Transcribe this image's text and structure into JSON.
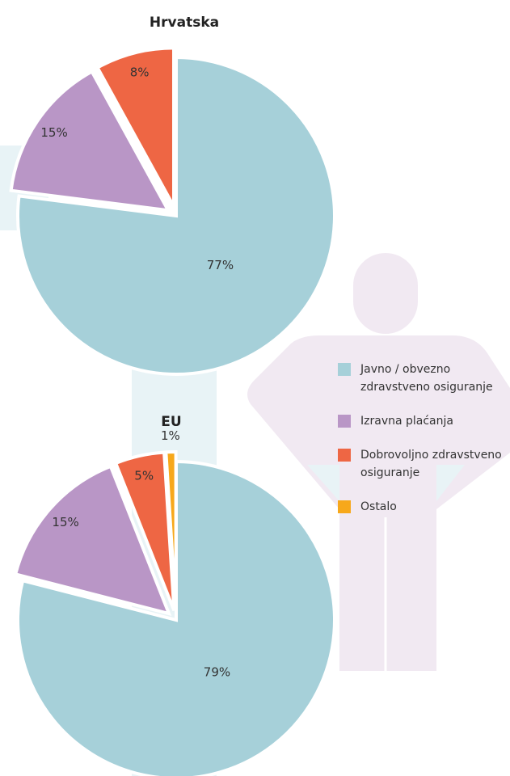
{
  "legend": {
    "items": [
      {
        "name": "Javno / obvezno zdravstveno osiguranje",
        "color": "#a6d0d9"
      },
      {
        "name": "Izravna plaćanja",
        "color": "#b996c6"
      },
      {
        "name": "Dobrovoljno zdravstveno osiguranje",
        "color": "#ee6644"
      },
      {
        "name": "Ostalo",
        "color": "#f7a81b"
      }
    ]
  },
  "chart_data": [
    {
      "type": "pie",
      "title": "Hrvatska",
      "values": [
        77,
        15,
        8
      ],
      "value_labels": [
        "77%",
        "15%",
        "8%"
      ],
      "colors": [
        "#a6d0d9",
        "#b996c6",
        "#ee6644"
      ]
    },
    {
      "type": "pie",
      "title": "EU",
      "values": [
        79,
        15,
        5,
        1
      ],
      "value_labels": [
        "79%",
        "15%",
        "5%",
        "1%"
      ],
      "colors": [
        "#a6d0d9",
        "#b996c6",
        "#ee6644",
        "#f7a81b"
      ]
    }
  ]
}
